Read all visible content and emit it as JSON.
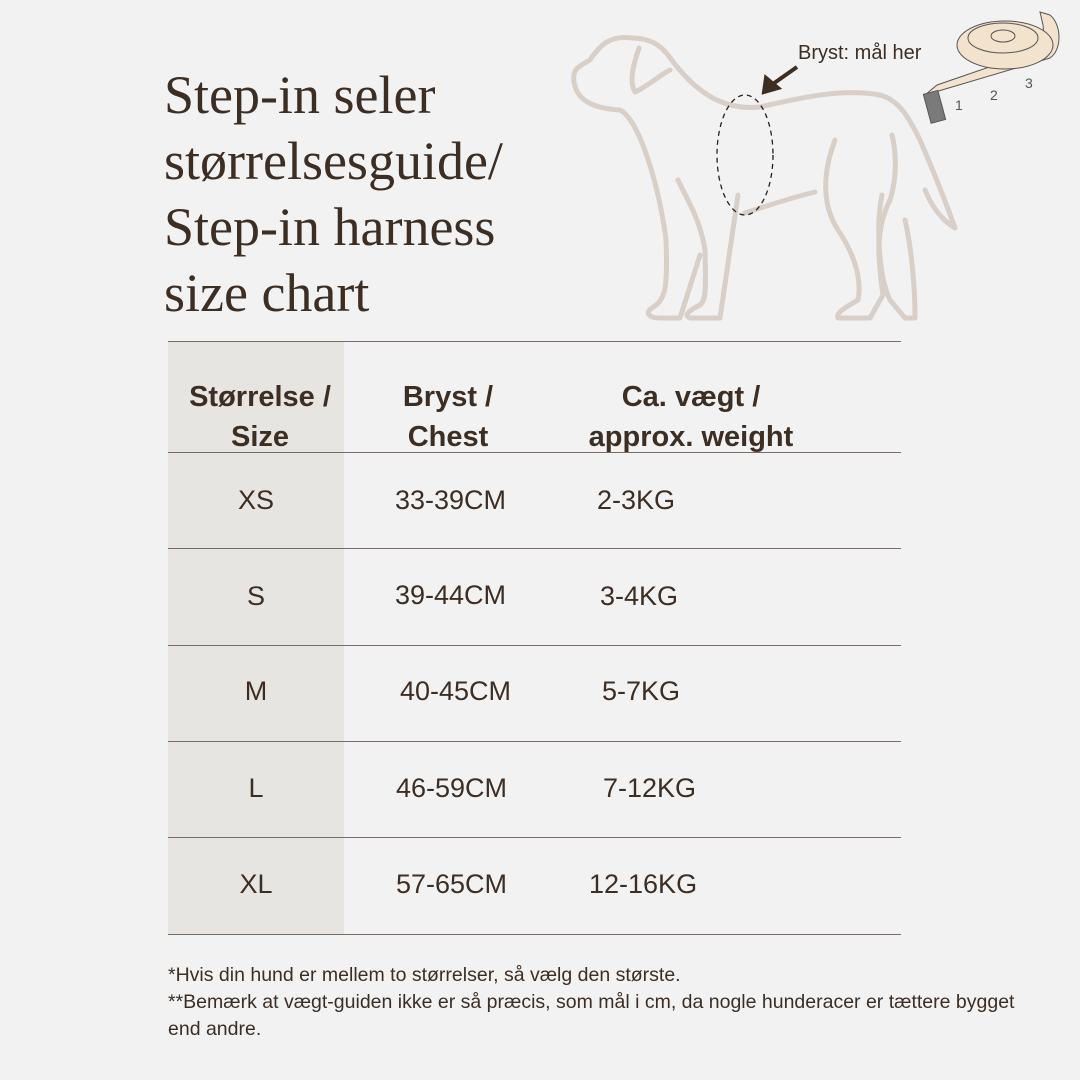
{
  "title": "Step-in seler\nstørrelsesguide/\nStep-in harness\nsize chart",
  "illustration": {
    "callout": "Bryst: mål her",
    "tape_labels": [
      "1",
      "2",
      "3"
    ]
  },
  "table": {
    "headers": [
      "Størrelse /\nSize",
      "Bryst /\nChest",
      "Ca. vægt /\napprox. weight"
    ],
    "rows": [
      {
        "size": "XS",
        "chest": "33-39CM",
        "weight": "2-3KG"
      },
      {
        "size": "S",
        "chest": "39-44CM",
        "weight": "3-4KG"
      },
      {
        "size": "M",
        "chest": "40-45CM",
        "weight": "5-7KG"
      },
      {
        "size": "L",
        "chest": "46-59CM",
        "weight": "7-12KG"
      },
      {
        "size": "XL",
        "chest": "57-65CM",
        "weight": "12-16KG"
      }
    ]
  },
  "notes": [
    "*Hvis din hund er mellem to størrelser, så vælg den største.",
    "**Bemærk at vægt-guiden ikke er så præcis, som mål i cm, da nogle hunderacer er tættere bygget end andre."
  ],
  "colors": {
    "background": "#f2f2f2",
    "text": "#3d2e24",
    "dog_outline": "#d9cfc9",
    "size_column": "#e7e5e1",
    "tape": "#f3e2cc"
  }
}
